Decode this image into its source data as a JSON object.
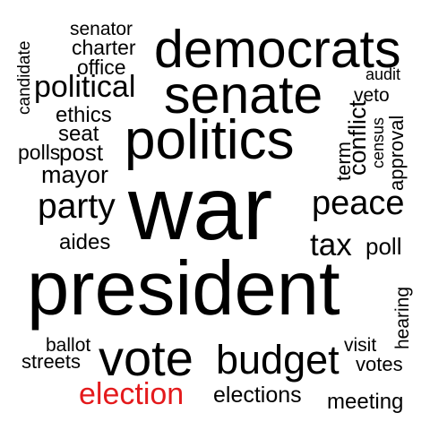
{
  "words": {
    "senator": "senator",
    "charter": "charter",
    "office": "office",
    "democrats": "democrats",
    "candidate": "candidate",
    "political": "political",
    "senate": "senate",
    "audit": "audit",
    "veto": "veto",
    "ethics": "ethics",
    "conflict": "conflict",
    "census": "census",
    "approval": "approval",
    "seat": "seat",
    "politics": "politics",
    "term": "term",
    "polls": "polls",
    "post": "post",
    "mayor": "mayor",
    "war": "war",
    "peace": "peace",
    "party": "party",
    "aides": "aides",
    "tax": "tax",
    "poll": "poll",
    "president": "president",
    "hearing": "hearing",
    "ballot": "ballot",
    "visit": "visit",
    "streets": "streets",
    "vote": "vote",
    "budget": "budget",
    "votes": "votes",
    "election": "election",
    "elections": "elections",
    "meeting": "meeting"
  },
  "colors": {
    "default_word": "#000000",
    "highlight_word": "#e41a1c",
    "background": "#ffffff"
  }
}
